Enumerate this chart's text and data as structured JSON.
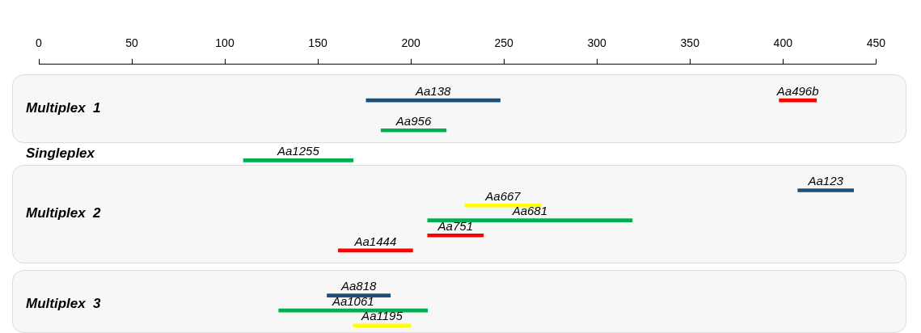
{
  "chart_data": {
    "type": "bar",
    "orientation": "horizontal",
    "categories": [
      null,
      "Multiplex  1",
      null,
      null,
      "Singleplex",
      null,
      null,
      null,
      "Multiplex  2",
      null,
      null,
      null,
      null,
      null,
      "Multiplex  3",
      null
    ],
    "xlim": [
      0,
      450
    ],
    "xticks": [
      0,
      50,
      100,
      150,
      200,
      250,
      300,
      350,
      400,
      450
    ],
    "series": [
      {
        "color": "#1f4e79",
        "base": [
          176,
          null,
          null,
          null,
          null,
          null,
          408,
          null,
          null,
          null,
          null,
          null,
          null,
          155,
          null,
          null
        ],
        "values": [
          72,
          null,
          null,
          null,
          null,
          null,
          30,
          null,
          null,
          null,
          null,
          null,
          null,
          34,
          null,
          null
        ],
        "value_labels": [
          "Aa138",
          null,
          null,
          null,
          null,
          null,
          "Aa123",
          null,
          null,
          null,
          null,
          null,
          null,
          "Aa818",
          null,
          null
        ]
      },
      {
        "color": "#00b050",
        "base": [
          null,
          null,
          184,
          null,
          110,
          null,
          null,
          null,
          209,
          null,
          null,
          null,
          null,
          null,
          129,
          null
        ],
        "values": [
          null,
          null,
          35,
          null,
          59,
          null,
          null,
          null,
          110,
          null,
          null,
          null,
          null,
          null,
          80,
          null
        ],
        "value_labels": [
          null,
          null,
          "Aa956",
          null,
          "Aa1255",
          null,
          null,
          null,
          "Aa681",
          null,
          null,
          null,
          null,
          null,
          "Aa1061",
          null
        ]
      },
      {
        "color": "#ff0000",
        "base": [
          398,
          null,
          null,
          null,
          null,
          null,
          null,
          null,
          null,
          209,
          161,
          null,
          null,
          null,
          null,
          null
        ],
        "values": [
          20,
          null,
          null,
          null,
          null,
          null,
          null,
          null,
          null,
          30,
          40,
          null,
          null,
          null,
          null,
          null
        ],
        "value_labels": [
          "Aa496b",
          null,
          null,
          null,
          null,
          null,
          null,
          null,
          null,
          "Aa751",
          "Aa1444",
          null,
          null,
          null,
          null,
          null
        ]
      },
      {
        "color": "#ffff00",
        "base": [
          null,
          null,
          null,
          null,
          null,
          null,
          null,
          229,
          null,
          null,
          null,
          null,
          null,
          null,
          null,
          169
        ],
        "values": [
          null,
          null,
          null,
          null,
          null,
          null,
          null,
          41,
          null,
          null,
          null,
          null,
          null,
          null,
          null,
          31
        ],
        "value_labels": [
          null,
          null,
          null,
          null,
          null,
          null,
          null,
          "Aa667",
          null,
          null,
          null,
          null,
          null,
          null,
          null,
          "Aa1195"
        ]
      }
    ]
  }
}
